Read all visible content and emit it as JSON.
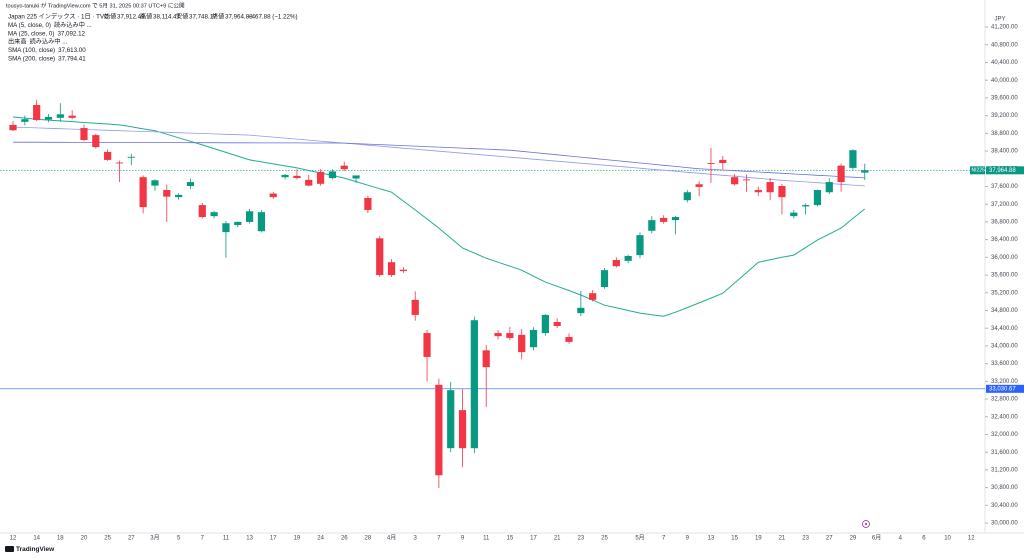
{
  "header": {
    "publisher": "tousyo-tanuki が TradingView.com で 5月 31, 2025 00:37 UTC+9 に公開",
    "symbol": "Japan 225 インデックス · 1日 · TVC",
    "open_label": "始値",
    "open": "37,912.49",
    "high_label": "高値",
    "high": "38,114.47",
    "low_label": "安値",
    "low": "37,748.17",
    "close_label": "終値",
    "close": "37,964.88",
    "change": "−467.88 (−1.22%)"
  },
  "footer": {
    "logo": "TradingView"
  },
  "chart_data": {
    "type": "candlestick",
    "currency": "JPY",
    "up_color": "#089981",
    "down_color": "#f23645",
    "categories": [
      "12",
      null,
      "14",
      null,
      "18",
      null,
      "20",
      null,
      "25",
      null,
      "27",
      null,
      "3月",
      null,
      "5",
      null,
      "7",
      null,
      "11",
      null,
      "13",
      null,
      "17",
      null,
      "19",
      null,
      "24",
      null,
      "26",
      null,
      "28",
      null,
      "4月",
      null,
      "3",
      null,
      "7",
      null,
      "9",
      null,
      "11",
      null,
      "15",
      null,
      "17",
      null,
      "21",
      null,
      "23",
      null,
      "25",
      null,
      null,
      "5月",
      null,
      "7",
      null,
      "9",
      null,
      "13",
      null,
      "15",
      null,
      "19",
      null,
      "21",
      null,
      "23",
      null,
      "27",
      null,
      "29",
      null,
      "6月",
      null,
      "4",
      null,
      "6",
      null,
      "10",
      null,
      "12"
    ],
    "open": [
      38990,
      39060,
      39440,
      39110,
      39150,
      39200,
      38920,
      38760,
      38380,
      38140,
      38250,
      37810,
      37620,
      37520,
      37360,
      37610,
      37180,
      36930,
      36570,
      36730,
      36800,
      36590,
      37440,
      37810,
      37840,
      37750,
      37930,
      37790,
      38070,
      37780,
      37340,
      36430,
      35890,
      35720,
      35040,
      34290,
      33120,
      31690,
      32550,
      31690,
      33900,
      34290,
      34290,
      34250,
      33970,
      34290,
      34540,
      34200,
      34740,
      35190,
      35330,
      35940,
      35920,
      36050,
      36600,
      36890,
      36840,
      37290,
      37650,
      38130,
      38200,
      37810,
      37760,
      37520,
      37700,
      37610,
      36930,
      37150,
      37180,
      37470,
      38070,
      38020,
      37912.49,
      null,
      null,
      null,
      null,
      null,
      null,
      null,
      null,
      null
    ],
    "high": [
      39080,
      39200,
      39560,
      39240,
      39480,
      39320,
      39000,
      38790,
      38440,
      38180,
      38340,
      37850,
      37760,
      37640,
      37450,
      37780,
      37230,
      37050,
      36820,
      36810,
      37090,
      37070,
      37480,
      37880,
      37990,
      37860,
      37990,
      37990,
      38160,
      37830,
      37390,
      36480,
      35960,
      35780,
      35230,
      34360,
      33260,
      33190,
      33020,
      34660,
      34020,
      34360,
      34430,
      34380,
      34420,
      34720,
      34620,
      34280,
      35240,
      35260,
      35760,
      36000,
      36060,
      36560,
      36930,
      36950,
      36940,
      37520,
      37720,
      38470,
      38290,
      37880,
      37870,
      37600,
      37790,
      37660,
      37070,
      37220,
      37530,
      37780,
      38120,
      38440,
      38114.47,
      null,
      null,
      null,
      null,
      null,
      null,
      null,
      null,
      null
    ],
    "low": [
      38850,
      38980,
      39080,
      39050,
      39060,
      39120,
      38620,
      38460,
      38180,
      37700,
      38080,
      36990,
      37500,
      36800,
      37300,
      37540,
      36880,
      36880,
      35990,
      36680,
      36760,
      36560,
      37320,
      37760,
      37760,
      37600,
      37620,
      37760,
      37950,
      37680,
      37000,
      35560,
      35560,
      35650,
      34570,
      33200,
      30790,
      31600,
      31260,
      31580,
      32620,
      34150,
      34130,
      33700,
      33900,
      34230,
      34400,
      34050,
      34670,
      35000,
      35290,
      35770,
      35870,
      35980,
      36540,
      36760,
      36520,
      37240,
      37380,
      37680,
      37990,
      37620,
      37480,
      37390,
      37290,
      36970,
      36880,
      36970,
      37150,
      37430,
      37480,
      37960,
      37748.17,
      null,
      null,
      null,
      null,
      null,
      null,
      null,
      null,
      null
    ],
    "close": [
      38870,
      39120,
      39100,
      39170,
      39230,
      39150,
      38650,
      38490,
      38200,
      38120,
      38270,
      37135,
      37740,
      37370,
      37410,
      37700,
      36910,
      37020,
      36770,
      36800,
      37040,
      37020,
      37360,
      37860,
      37790,
      37620,
      37660,
      37940,
      37990,
      37850,
      37070,
      35600,
      35600,
      35690,
      34700,
      33750,
      31080,
      33000,
      31690,
      34580,
      33520,
      34220,
      34180,
      33860,
      34360,
      34700,
      34450,
      34090,
      34860,
      35040,
      35710,
      35800,
      36030,
      36500,
      36840,
      36800,
      36910,
      37470,
      37590,
      38110,
      38130,
      37650,
      37740,
      37470,
      37470,
      37360,
      37010,
      37180,
      37520,
      37700,
      37700,
      38420,
      37964.88,
      null,
      null,
      null,
      null,
      null,
      null,
      null,
      null,
      null
    ],
    "indicators": [
      {
        "name": "MA (5, close, 0)",
        "status": "読み込み中 ..."
      },
      {
        "name": "MA (25, close, 0)",
        "color": "#22ab94",
        "value_label": "37,092.12",
        "values": [
          39170,
          39145,
          39120,
          39100,
          39080,
          39065,
          39045,
          39030,
          39010,
          38990,
          38950,
          38900,
          38860,
          38780,
          38700,
          38620,
          38540,
          38455,
          38370,
          38285,
          38200,
          38155,
          38110,
          38065,
          38020,
          37960,
          37905,
          37850,
          37790,
          37710,
          37630,
          37550,
          37470,
          37270,
          37070,
          36865,
          36660,
          36435,
          36210,
          36095,
          35980,
          35890,
          35800,
          35710,
          35575,
          35440,
          35345,
          35250,
          35150,
          35035,
          34920,
          34860,
          34800,
          34740,
          34705,
          34670,
          34760,
          34865,
          34970,
          35080,
          35190,
          35420,
          35650,
          35890,
          35945,
          36000,
          36050,
          36220,
          36390,
          36525,
          36660,
          36880,
          37092.12,
          null,
          null,
          null,
          null,
          null,
          null,
          null,
          null,
          null
        ]
      },
      {
        "name": "出来高",
        "status": "読み込み中 ..."
      },
      {
        "name": "SMA (100, close)",
        "color": "#9598f0",
        "value_label": "37,613.00",
        "values": [
          38940,
          38931,
          38922,
          38913,
          38904,
          38895,
          38886,
          38877,
          38868,
          38859,
          38850,
          38841,
          38832,
          38823,
          38814,
          38805,
          38796,
          38787,
          38778,
          38769,
          38760,
          38737,
          38715,
          38692,
          38669,
          38647,
          38624,
          38601,
          38579,
          38556,
          38533,
          38511,
          38488,
          38465,
          38443,
          38420,
          38397,
          38375,
          38352,
          38329,
          38307,
          38284,
          38261,
          38239,
          38216,
          38193,
          38171,
          38148,
          38125,
          38103,
          38080,
          38057,
          38035,
          38012,
          37989,
          37967,
          37944,
          37921,
          37899,
          37876,
          37853,
          37831,
          37808,
          37785,
          37763,
          37740,
          37722,
          37704,
          37686,
          37667,
          37649,
          37631,
          37613,
          null,
          null,
          null,
          null,
          null,
          null,
          null,
          null,
          null
        ]
      },
      {
        "name": "SMA (200, close)",
        "color": "#6a6fd8",
        "value_label": "37,794.41",
        "values": [
          38600,
          38599,
          38599,
          38598,
          38597,
          38596,
          38596,
          38595,
          38594,
          38594,
          38593,
          38592,
          38591,
          38591,
          38590,
          38589,
          38589,
          38588,
          38587,
          38586,
          38586,
          38585,
          38584,
          38584,
          38583,
          38582,
          38581,
          38581,
          38580,
          38569,
          38557,
          38546,
          38534,
          38523,
          38511,
          38500,
          38489,
          38477,
          38466,
          38454,
          38443,
          38431,
          38420,
          38394,
          38368,
          38341,
          38315,
          38289,
          38263,
          38236,
          38210,
          38184,
          38158,
          38131,
          38105,
          38079,
          38053,
          38026,
          38000,
          37985,
          37971,
          37956,
          37941,
          37926,
          37912,
          37897,
          37882,
          37868,
          37853,
          37838,
          37824,
          37809,
          37794.41,
          null,
          null,
          null,
          null,
          null,
          null,
          null,
          null,
          null
        ]
      }
    ],
    "price_lines": [
      {
        "value": 37964.88,
        "label": "37,964.88",
        "symbol": "NI225",
        "color": "#089981"
      },
      {
        "value": 33030.67,
        "label": "33,030.67",
        "color": "#2962ff"
      }
    ],
    "ylim": [
      29775,
      41540
    ],
    "yticks": [
      {
        "value": 30000,
        "label": "30,000.00"
      },
      {
        "value": 30400,
        "label": "30,400.00"
      },
      {
        "value": 30800,
        "label": "30,800.00"
      },
      {
        "value": 31200,
        "label": "31,200.00"
      },
      {
        "value": 31600,
        "label": "31,600.00"
      },
      {
        "value": 32000,
        "label": "32,000.00"
      },
      {
        "value": 32400,
        "label": "32,400.00"
      },
      {
        "value": 32800,
        "label": "32,800.00"
      },
      {
        "value": 33200,
        "label": "33,200.00"
      },
      {
        "value": 33600,
        "label": "33,600.00"
      },
      {
        "value": 34000,
        "label": "34,000.00"
      },
      {
        "value": 34400,
        "label": "34,400.00"
      },
      {
        "value": 34800,
        "label": "34,800.00"
      },
      {
        "value": 35200,
        "label": "35,200.00"
      },
      {
        "value": 35600,
        "label": "35,600.00"
      },
      {
        "value": 36000,
        "label": "36,000.00"
      },
      {
        "value": 36400,
        "label": "36,400.00"
      },
      {
        "value": 36800,
        "label": "36,800.00"
      },
      {
        "value": 37200,
        "label": "37,200.00"
      },
      {
        "value": 37600,
        "label": "37,600.00"
      },
      {
        "value": 38000,
        "label": "38,000.00"
      },
      {
        "value": 38400,
        "label": "38,400.00"
      },
      {
        "value": 38800,
        "label": "38,800.00"
      },
      {
        "value": 39200,
        "label": "39,200.00"
      },
      {
        "value": 39600,
        "label": "39,600.00"
      },
      {
        "value": 40000,
        "label": "40,000.00"
      },
      {
        "value": 40400,
        "label": "40,400.00"
      },
      {
        "value": 40800,
        "label": "40,800.00"
      },
      {
        "value": 41200,
        "label": "41,200.00"
      }
    ],
    "grid": false
  }
}
